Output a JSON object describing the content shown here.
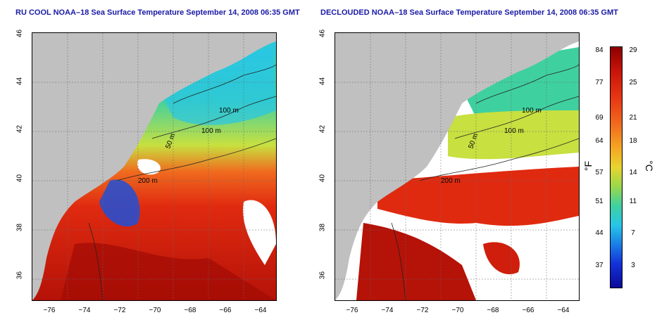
{
  "left_map": {
    "title": "RU COOL NOAA–18 Sea Surface Temperature September 14, 2008 06:35 GMT"
  },
  "right_map": {
    "title": "DECLOUDED NOAA–18 Sea Surface Temperature September 14, 2008 06:35 GMT"
  },
  "axes": {
    "y_ticks": [
      "46",
      "44",
      "42",
      "40",
      "38",
      "36"
    ],
    "x_ticks": [
      "−76",
      "−74",
      "−72",
      "−70",
      "−68",
      "−66",
      "−64"
    ]
  },
  "contours": {
    "depth_100": "100 m",
    "depth_200": "200 m",
    "depth_50": "50 m"
  },
  "colorbar": {
    "unit_f": "°F",
    "unit_c": "°C",
    "f_ticks": [
      "84",
      "77",
      "69",
      "64",
      "57",
      "51",
      "44",
      "37"
    ],
    "c_ticks": [
      "29",
      "25",
      "21",
      "18",
      "14",
      "11",
      "7",
      "3"
    ],
    "colors": [
      "#8b0000",
      "#c8140a",
      "#e83a14",
      "#f06a1e",
      "#f5a623",
      "#e8d530",
      "#9ad84a",
      "#3fd0a0",
      "#28c6e8",
      "#1a7fe6",
      "#1432d8",
      "#0b0b9a"
    ]
  },
  "colors": {
    "land": "#c0c0c0",
    "title": "#1a1aa6",
    "cloud": "#ffffff"
  }
}
